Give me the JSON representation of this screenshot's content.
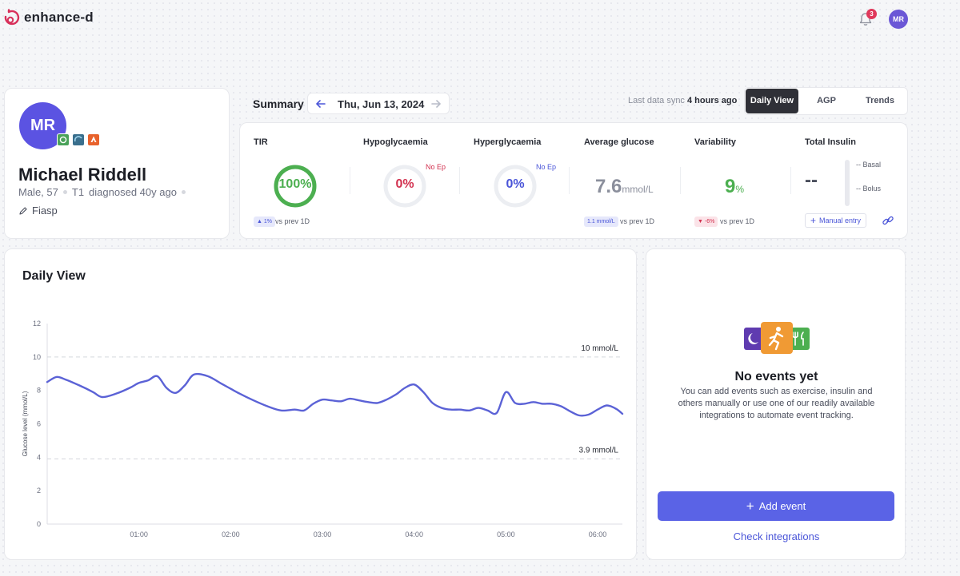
{
  "brand": {
    "name": "enhance-d"
  },
  "topbar": {
    "notification_count": "3",
    "avatar_initials": "MR"
  },
  "patient": {
    "initials": "MR",
    "name": "Michael Riddell",
    "sex_age": "Male, 57",
    "diabetes_type": "T1",
    "diagnosed": "diagnosed 40y ago",
    "insulin": "Fiasp",
    "device_icons": [
      "cgm-icon",
      "pump-icon",
      "strava-icon"
    ]
  },
  "summary": {
    "title": "Summary",
    "date": "Thu, Jun 13, 2024",
    "sync_prefix": "Last data sync",
    "sync_value": "4 hours ago",
    "tabs": [
      "Daily View",
      "AGP",
      "Trends"
    ],
    "active_tab": "Daily View"
  },
  "metrics": {
    "tir": {
      "label": "TIR",
      "value": "100%",
      "percent": 100,
      "delta": "1%",
      "vs": "vs prev 1D",
      "color": "#4caf50"
    },
    "hypo": {
      "label": "Hypoglycaemia",
      "value": "0%",
      "percent": 0,
      "episodes": "No Ep",
      "color": "#d2314f"
    },
    "hyper": {
      "label": "Hyperglycaemia",
      "value": "0%",
      "percent": 0,
      "episodes": "No Ep",
      "color": "#4a55d8"
    },
    "avg": {
      "label": "Average glucose",
      "value": "7.6",
      "unit": "mmol/L",
      "delta": "1.1 mmol/L",
      "vs": "vs prev 1D"
    },
    "variability": {
      "label": "Variability",
      "value": "9",
      "unit": "%",
      "delta": "-6%",
      "vs": "vs prev 1D",
      "color": "#4caf50"
    },
    "insulin": {
      "label": "Total Insulin",
      "value": "--",
      "basal": "-- Basal",
      "bolus": "-- Bolus",
      "manual_entry": "Manual entry"
    }
  },
  "daily_view": {
    "title": "Daily View",
    "chart_data": {
      "type": "line",
      "ylabel": "Glucose level (mmol/L)",
      "xlabel": "",
      "ylim": [
        0,
        12
      ],
      "yticks": [
        0,
        2,
        4,
        6,
        8,
        10,
        12
      ],
      "xlim": [
        0,
        6.27
      ],
      "xticks": [
        1,
        2,
        3,
        4,
        5,
        6
      ],
      "xtick_labels": [
        "01:00",
        "02:00",
        "03:00",
        "04:00",
        "05:00",
        "06:00"
      ],
      "thresholds": [
        {
          "value": 10,
          "label": "10 mmol/L"
        },
        {
          "value": 3.9,
          "label": "3.9 mmol/L"
        }
      ],
      "series": [
        {
          "color": "#5b62d6",
          "x": [
            0,
            0.1,
            0.2,
            0.35,
            0.5,
            0.6,
            0.75,
            0.9,
            1.0,
            1.1,
            1.2,
            1.3,
            1.4,
            1.5,
            1.6,
            1.75,
            1.9,
            2.0,
            2.1,
            2.25,
            2.4,
            2.55,
            2.7,
            2.8,
            2.9,
            3.0,
            3.1,
            3.2,
            3.3,
            3.4,
            3.5,
            3.6,
            3.7,
            3.8,
            3.9,
            4.0,
            4.1,
            4.2,
            4.3,
            4.4,
            4.5,
            4.6,
            4.7,
            4.8,
            4.9,
            5.0,
            5.1,
            5.2,
            5.3,
            5.4,
            5.5,
            5.6,
            5.7,
            5.8,
            5.9,
            6.0,
            6.1,
            6.2,
            6.27
          ],
          "y": [
            8.5,
            8.8,
            8.65,
            8.3,
            7.9,
            7.6,
            7.8,
            8.15,
            8.45,
            8.6,
            8.85,
            8.15,
            7.85,
            8.3,
            8.95,
            8.85,
            8.4,
            8.1,
            7.8,
            7.4,
            7.05,
            6.8,
            6.85,
            6.8,
            7.2,
            7.45,
            7.4,
            7.35,
            7.5,
            7.4,
            7.3,
            7.25,
            7.45,
            7.75,
            8.15,
            8.35,
            7.9,
            7.25,
            6.95,
            6.85,
            6.85,
            6.8,
            6.95,
            6.8,
            6.65,
            7.9,
            7.25,
            7.2,
            7.3,
            7.2,
            7.2,
            7.05,
            6.75,
            6.5,
            6.55,
            6.85,
            7.1,
            6.9,
            6.6
          ]
        }
      ]
    }
  },
  "events": {
    "title": "No events yet",
    "description": "You can add events such as exercise, insulin and others manually or use one of our readily available integrations to automate event tracking.",
    "add_button": "Add event",
    "link": "Check integrations"
  },
  "colors": {
    "accent": "#5a63e6",
    "link": "#4a55d8",
    "tab_active_bg": "#2f3037",
    "positive": "#4caf50",
    "negative": "#d2314f"
  }
}
